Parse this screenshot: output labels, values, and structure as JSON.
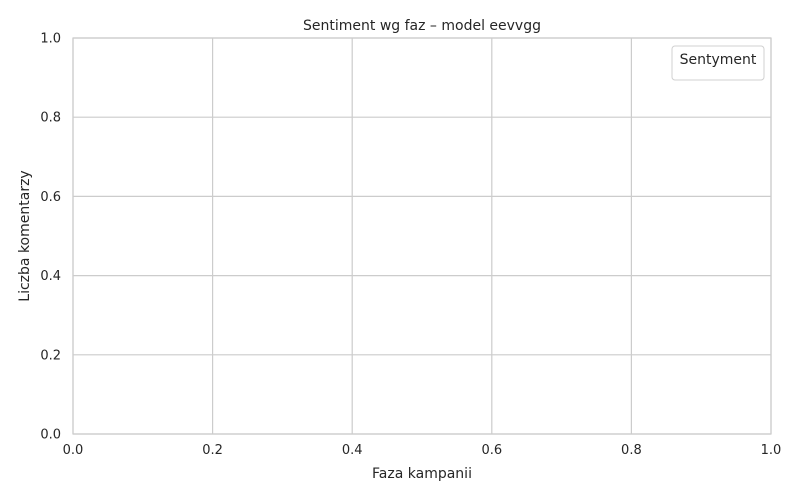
{
  "chart_data": {
    "type": "bar",
    "title": "Sentiment wg faz – model eevvgg",
    "xlabel": "Faza kampanii",
    "ylabel": "Liczba komentarzy",
    "xlim": [
      0,
      1
    ],
    "ylim": [
      0,
      1
    ],
    "xticks": [
      "0.0",
      "0.2",
      "0.4",
      "0.6",
      "0.8",
      "1.0"
    ],
    "yticks": [
      "0.0",
      "0.2",
      "0.4",
      "0.6",
      "0.8",
      "1.0"
    ],
    "categories": [],
    "series": [],
    "legend": {
      "title": "Sentyment",
      "position": "top-right",
      "entries": []
    },
    "grid": true
  },
  "colors": {
    "grid": "#cccccc",
    "text": "#262626",
    "background": "#ffffff"
  }
}
